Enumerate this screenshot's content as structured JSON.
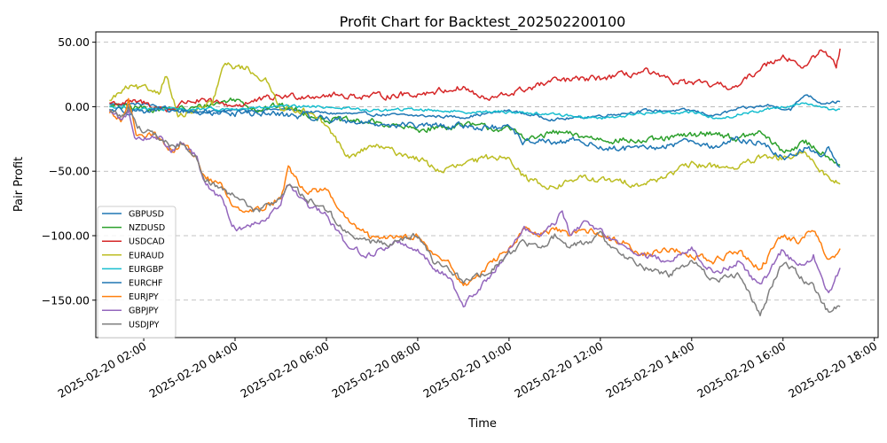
{
  "chart_data": {
    "type": "line",
    "title": "Profit Chart for Backtest_202502200100",
    "xlabel": "Time",
    "ylabel": "Pair Profit",
    "x_range": [
      "2025-02-20 00:57",
      "2025-02-20 18:05"
    ],
    "ylim": [
      -179,
      58
    ],
    "x_ticks": [
      "2025-02-20 02:00",
      "2025-02-20 04:00",
      "2025-02-20 06:00",
      "2025-02-20 08:00",
      "2025-02-20 10:00",
      "2025-02-20 12:00",
      "2025-02-20 14:00",
      "2025-02-20 16:00",
      "2025-02-20 18:00"
    ],
    "y_ticks": [
      50,
      0,
      -50,
      -100,
      -150
    ],
    "y_tick_labels": [
      "50.00",
      "0.00",
      "−50.00",
      "−100.00",
      "−150.00"
    ],
    "grid": "horizontal-dashed",
    "legend_position": "lower-left",
    "series": [
      {
        "name": "GBPUSD",
        "color": "#1f77b4",
        "points": [
          [
            "01:15",
            2
          ],
          [
            "02:00",
            2
          ],
          [
            "03:00",
            -4
          ],
          [
            "04:00",
            -3
          ],
          [
            "05:00",
            -2
          ],
          [
            "06:00",
            -5
          ],
          [
            "07:00",
            -6
          ],
          [
            "08:00",
            -7
          ],
          [
            "09:00",
            -8
          ],
          [
            "10:00",
            -3
          ],
          [
            "11:00",
            -10
          ],
          [
            "12:00",
            -7
          ],
          [
            "13:00",
            -3
          ],
          [
            "14:00",
            -3
          ],
          [
            "14:30",
            -7
          ],
          [
            "15:00",
            -2
          ],
          [
            "15:40",
            1
          ],
          [
            "16:10",
            -2
          ],
          [
            "16:30",
            10
          ],
          [
            "16:50",
            3
          ],
          [
            "17:15",
            4
          ]
        ]
      },
      {
        "name": "NZDUSD",
        "color": "#2ca02c",
        "points": [
          [
            "01:15",
            0
          ],
          [
            "02:00",
            -1
          ],
          [
            "03:00",
            -2
          ],
          [
            "04:00",
            6
          ],
          [
            "04:30",
            -2
          ],
          [
            "05:00",
            1
          ],
          [
            "06:00",
            -10
          ],
          [
            "07:00",
            -12
          ],
          [
            "08:00",
            -18
          ],
          [
            "09:00",
            -14
          ],
          [
            "10:00",
            -18
          ],
          [
            "10:30",
            -25
          ],
          [
            "11:00",
            -20
          ],
          [
            "12:00",
            -25
          ],
          [
            "13:00",
            -27
          ],
          [
            "14:00",
            -22
          ],
          [
            "14:30",
            -20
          ],
          [
            "15:00",
            -25
          ],
          [
            "15:30",
            -20
          ],
          [
            "16:00",
            -35
          ],
          [
            "16:30",
            -28
          ],
          [
            "17:00",
            -38
          ],
          [
            "17:15",
            -45
          ]
        ]
      },
      {
        "name": "USDCAD",
        "color": "#d62728",
        "points": [
          [
            "01:15",
            3
          ],
          [
            "02:00",
            3
          ],
          [
            "02:30",
            -3
          ],
          [
            "03:00",
            5
          ],
          [
            "04:00",
            1
          ],
          [
            "05:00",
            8
          ],
          [
            "06:00",
            9
          ],
          [
            "07:00",
            8
          ],
          [
            "08:00",
            10
          ],
          [
            "09:00",
            15
          ],
          [
            "09:30",
            5
          ],
          [
            "10:00",
            10
          ],
          [
            "11:00",
            20
          ],
          [
            "12:00",
            22
          ],
          [
            "13:00",
            27
          ],
          [
            "13:30",
            20
          ],
          [
            "14:00",
            18
          ],
          [
            "15:00",
            15
          ],
          [
            "15:30",
            30
          ],
          [
            "16:00",
            40
          ],
          [
            "16:30",
            30
          ],
          [
            "16:50",
            45
          ],
          [
            "17:10",
            32
          ],
          [
            "17:15",
            45
          ]
        ]
      },
      {
        "name": "EURAUD",
        "color": "#bcbd22",
        "points": [
          [
            "01:15",
            5
          ],
          [
            "01:40",
            15
          ],
          [
            "02:20",
            12
          ],
          [
            "02:30",
            25
          ],
          [
            "02:45",
            -8
          ],
          [
            "03:00",
            -5
          ],
          [
            "03:30",
            2
          ],
          [
            "03:45",
            32
          ],
          [
            "04:15",
            30
          ],
          [
            "04:40",
            20
          ],
          [
            "05:00",
            0
          ],
          [
            "05:30",
            -3
          ],
          [
            "06:00",
            -15
          ],
          [
            "06:30",
            -40
          ],
          [
            "07:00",
            -30
          ],
          [
            "07:30",
            -35
          ],
          [
            "08:00",
            -40
          ],
          [
            "08:30",
            -50
          ],
          [
            "09:00",
            -45
          ],
          [
            "09:30",
            -40
          ],
          [
            "10:00",
            -38
          ],
          [
            "10:20",
            -55
          ],
          [
            "11:00",
            -63
          ],
          [
            "11:30",
            -55
          ],
          [
            "12:00",
            -57
          ],
          [
            "13:00",
            -60
          ],
          [
            "13:30",
            -52
          ],
          [
            "14:00",
            -45
          ],
          [
            "15:00",
            -47
          ],
          [
            "15:30",
            -40
          ],
          [
            "16:00",
            -40
          ],
          [
            "16:30",
            -37
          ],
          [
            "17:00",
            -55
          ],
          [
            "17:15",
            -60
          ]
        ]
      },
      {
        "name": "EURGBP",
        "color": "#17becf",
        "points": [
          [
            "01:15",
            0
          ],
          [
            "02:00",
            -2
          ],
          [
            "03:00",
            -2
          ],
          [
            "04:00",
            -2
          ],
          [
            "05:00",
            0
          ],
          [
            "06:00",
            0
          ],
          [
            "07:00",
            -3
          ],
          [
            "08:00",
            -2
          ],
          [
            "09:00",
            -4
          ],
          [
            "10:00",
            -4
          ],
          [
            "11:00",
            -6
          ],
          [
            "12:00",
            -9
          ],
          [
            "13:00",
            -5
          ],
          [
            "14:00",
            -4
          ],
          [
            "14:40",
            -10
          ],
          [
            "15:00",
            -6
          ],
          [
            "16:00",
            0
          ],
          [
            "16:30",
            3
          ],
          [
            "17:00",
            -2
          ],
          [
            "17:15",
            -2
          ]
        ]
      },
      {
        "name": "EURCHF",
        "color": "#1f77b4",
        "points": [
          [
            "01:15",
            -2
          ],
          [
            "02:00",
            -3
          ],
          [
            "03:00",
            -4
          ],
          [
            "04:00",
            -5
          ],
          [
            "05:00",
            -6
          ],
          [
            "06:00",
            -9
          ],
          [
            "07:00",
            -13
          ],
          [
            "08:00",
            -15
          ],
          [
            "09:00",
            -15
          ],
          [
            "10:00",
            -17
          ],
          [
            "10:20",
            -28
          ],
          [
            "10:40",
            -25
          ],
          [
            "11:00",
            -30
          ],
          [
            "11:30",
            -25
          ],
          [
            "12:00",
            -32
          ],
          [
            "13:00",
            -33
          ],
          [
            "13:30",
            -30
          ],
          [
            "14:00",
            -25
          ],
          [
            "14:30",
            -32
          ],
          [
            "15:00",
            -25
          ],
          [
            "15:30",
            -28
          ],
          [
            "16:00",
            -40
          ],
          [
            "16:30",
            -32
          ],
          [
            "16:50",
            -38
          ],
          [
            "17:00",
            -30
          ],
          [
            "17:15",
            -47
          ]
        ]
      },
      {
        "name": "EURJPY",
        "color": "#ff7f0e",
        "points": [
          [
            "01:15",
            -5
          ],
          [
            "01:30",
            -12
          ],
          [
            "01:40",
            5
          ],
          [
            "01:50",
            -20
          ],
          [
            "02:15",
            -22
          ],
          [
            "02:40",
            -35
          ],
          [
            "02:50",
            -28
          ],
          [
            "03:10",
            -40
          ],
          [
            "03:20",
            -55
          ],
          [
            "03:40",
            -60
          ],
          [
            "04:00",
            -78
          ],
          [
            "04:30",
            -80
          ],
          [
            "05:00",
            -70
          ],
          [
            "05:10",
            -48
          ],
          [
            "05:30",
            -65
          ],
          [
            "06:00",
            -65
          ],
          [
            "06:30",
            -90
          ],
          [
            "07:00",
            -102
          ],
          [
            "07:30",
            -100
          ],
          [
            "08:00",
            -100
          ],
          [
            "08:20",
            -115
          ],
          [
            "08:40",
            -120
          ],
          [
            "09:00",
            -140
          ],
          [
            "09:30",
            -125
          ],
          [
            "10:00",
            -110
          ],
          [
            "10:20",
            -95
          ],
          [
            "10:40",
            -100
          ],
          [
            "11:00",
            -95
          ],
          [
            "11:20",
            -100
          ],
          [
            "11:40",
            -95
          ],
          [
            "12:00",
            -100
          ],
          [
            "12:30",
            -105
          ],
          [
            "13:00",
            -115
          ],
          [
            "13:30",
            -110
          ],
          [
            "14:00",
            -115
          ],
          [
            "14:30",
            -120
          ],
          [
            "15:00",
            -112
          ],
          [
            "15:30",
            -125
          ],
          [
            "16:00",
            -100
          ],
          [
            "16:20",
            -105
          ],
          [
            "16:40",
            -95
          ],
          [
            "17:00",
            -120
          ],
          [
            "17:15",
            -110
          ]
        ]
      },
      {
        "name": "GBPJPY",
        "color": "#9467bd",
        "points": [
          [
            "01:15",
            -3
          ],
          [
            "01:30",
            -10
          ],
          [
            "01:40",
            -5
          ],
          [
            "01:50",
            -25
          ],
          [
            "02:15",
            -22
          ],
          [
            "02:40",
            -35
          ],
          [
            "02:50",
            -28
          ],
          [
            "03:10",
            -40
          ],
          [
            "03:20",
            -60
          ],
          [
            "03:40",
            -70
          ],
          [
            "04:00",
            -95
          ],
          [
            "04:30",
            -90
          ],
          [
            "05:00",
            -75
          ],
          [
            "05:10",
            -60
          ],
          [
            "05:30",
            -75
          ],
          [
            "06:00",
            -85
          ],
          [
            "06:30",
            -110
          ],
          [
            "07:00",
            -115
          ],
          [
            "07:30",
            -105
          ],
          [
            "08:00",
            -110
          ],
          [
            "08:20",
            -125
          ],
          [
            "08:40",
            -130
          ],
          [
            "09:00",
            -155
          ],
          [
            "09:30",
            -135
          ],
          [
            "10:00",
            -110
          ],
          [
            "10:20",
            -95
          ],
          [
            "10:40",
            -100
          ],
          [
            "11:00",
            -90
          ],
          [
            "11:10",
            -80
          ],
          [
            "11:20",
            -100
          ],
          [
            "11:40",
            -90
          ],
          [
            "12:00",
            -95
          ],
          [
            "12:30",
            -110
          ],
          [
            "13:00",
            -115
          ],
          [
            "13:30",
            -120
          ],
          [
            "14:00",
            -110
          ],
          [
            "14:30",
            -130
          ],
          [
            "15:00",
            -120
          ],
          [
            "15:30",
            -140
          ],
          [
            "16:00",
            -110
          ],
          [
            "16:20",
            -125
          ],
          [
            "16:40",
            -115
          ],
          [
            "17:00",
            -145
          ],
          [
            "17:15",
            -125
          ]
        ]
      },
      {
        "name": "USDJPY",
        "color": "#7f7f7f",
        "points": [
          [
            "01:15",
            -2
          ],
          [
            "01:30",
            -8
          ],
          [
            "01:40",
            0
          ],
          [
            "01:50",
            -15
          ],
          [
            "02:15",
            -22
          ],
          [
            "02:40",
            -32
          ],
          [
            "02:50",
            -28
          ],
          [
            "03:10",
            -40
          ],
          [
            "03:20",
            -55
          ],
          [
            "03:40",
            -65
          ],
          [
            "04:00",
            -70
          ],
          [
            "04:30",
            -82
          ],
          [
            "05:00",
            -70
          ],
          [
            "05:10",
            -60
          ],
          [
            "05:30",
            -70
          ],
          [
            "06:00",
            -80
          ],
          [
            "06:30",
            -100
          ],
          [
            "07:00",
            -105
          ],
          [
            "07:30",
            -105
          ],
          [
            "08:00",
            -100
          ],
          [
            "08:20",
            -120
          ],
          [
            "08:40",
            -125
          ],
          [
            "09:00",
            -135
          ],
          [
            "09:30",
            -130
          ],
          [
            "10:00",
            -115
          ],
          [
            "10:20",
            -105
          ],
          [
            "10:40",
            -110
          ],
          [
            "11:00",
            -100
          ],
          [
            "11:20",
            -110
          ],
          [
            "11:40",
            -105
          ],
          [
            "12:00",
            -100
          ],
          [
            "12:30",
            -115
          ],
          [
            "13:00",
            -125
          ],
          [
            "13:30",
            -130
          ],
          [
            "14:00",
            -120
          ],
          [
            "14:30",
            -135
          ],
          [
            "15:00",
            -130
          ],
          [
            "15:30",
            -160
          ],
          [
            "16:00",
            -120
          ],
          [
            "16:20",
            -130
          ],
          [
            "16:40",
            -140
          ],
          [
            "17:00",
            -160
          ],
          [
            "17:15",
            -155
          ]
        ]
      }
    ]
  }
}
